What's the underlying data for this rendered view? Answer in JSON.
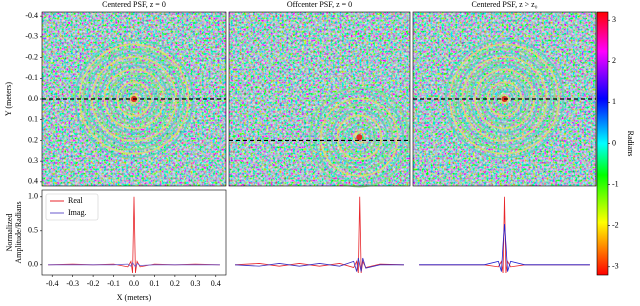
{
  "chart_data": [
    {
      "type": "image",
      "title": "Centered PSF, z = 0",
      "ylabel": "Y (meters)",
      "ylim": [
        -0.42,
        0.42
      ],
      "y_inverted": true,
      "cut_y": 0,
      "yticks": [
        -0.4,
        -0.3,
        -0.2,
        -0.1,
        {
          "value": 0,
          "label": "0.0"
        },
        0.1,
        0.2,
        0.3,
        0.4
      ]
    },
    {
      "type": "image",
      "title": "Offcenter PSF, z = 0",
      "ylim": [
        -0.42,
        0.42
      ],
      "y_inverted": true,
      "cut_y": 0.2
    },
    {
      "type": "image",
      "title": "Centered PSF, z > z₀",
      "ylim": [
        -0.42,
        0.42
      ],
      "y_inverted": true,
      "cut_y": 0
    },
    {
      "type": "colorbar",
      "label": "Radians",
      "ylim": [
        -3.2,
        3.2
      ],
      "yticks": [
        -3,
        -2,
        -1,
        0,
        1,
        2,
        3
      ]
    },
    {
      "type": "line",
      "ylabel": [
        "Normalized",
        "Amplitude/Radians"
      ],
      "xlabel": "X (meters)",
      "legend": "upper left",
      "xlim": [
        -0.45,
        0.45
      ],
      "ylim": [
        -0.15,
        1.1
      ],
      "xticks": [
        -0.4,
        -0.3,
        -0.2,
        -0.1,
        {
          "value": 0,
          "label": "0.0"
        },
        0.1,
        0.2,
        0.3,
        0.4
      ],
      "yticks": [
        {
          "value": 0,
          "label": "0.0"
        },
        0.5,
        {
          "value": 1,
          "label": "1.0"
        }
      ],
      "x": [
        -0.42,
        -0.3,
        -0.2,
        -0.1,
        -0.03,
        -0.015,
        -0.007,
        0,
        0.007,
        0.015,
        0.03,
        0.1,
        0.2,
        0.3,
        0.42
      ],
      "series": [
        {
          "name": "Real",
          "color": "#e8262b",
          "values": [
            0,
            0.01,
            0,
            0.01,
            -0.03,
            0.05,
            -0.12,
            1.0,
            -0.12,
            0.05,
            -0.03,
            0.01,
            0,
            0.01,
            0
          ]
        },
        {
          "name": "Imag.",
          "color": "#6a5acd",
          "values": [
            0,
            0,
            0,
            0,
            0.01,
            -0.02,
            0.03,
            0,
            -0.03,
            0.02,
            -0.01,
            0,
            0,
            0,
            0
          ]
        }
      ]
    },
    {
      "type": "line",
      "xlim": [
        -0.45,
        0.45
      ],
      "ylim": [
        -0.15,
        1.1
      ],
      "x": [
        -0.42,
        -0.3,
        -0.2,
        -0.1,
        0,
        0.1,
        0.17,
        0.185,
        0.193,
        0.2,
        0.207,
        0.215,
        0.23,
        0.3,
        0.42
      ],
      "series": [
        {
          "name": "Real",
          "color": "#e8262b",
          "values": [
            0,
            0.02,
            -0.02,
            0.02,
            -0.02,
            0.02,
            -0.04,
            0.05,
            -0.12,
            1.0,
            -0.12,
            0.05,
            -0.04,
            0.01,
            0
          ]
        },
        {
          "name": "Imag.",
          "color": "#3a2fc0",
          "values": [
            0,
            -0.02,
            0.02,
            -0.02,
            0.02,
            -0.02,
            0.05,
            -0.1,
            0.1,
            0,
            -0.1,
            0.1,
            -0.05,
            0,
            0
          ]
        }
      ]
    },
    {
      "type": "line",
      "xlim": [
        -0.45,
        0.45
      ],
      "ylim": [
        -0.15,
        1.1
      ],
      "x": [
        -0.42,
        -0.3,
        -0.2,
        -0.1,
        -0.03,
        -0.015,
        -0.007,
        0,
        0.007,
        0.015,
        0.03,
        0.1,
        0.2,
        0.3,
        0.42
      ],
      "series": [
        {
          "name": "Real",
          "color": "#e8262b",
          "values": [
            0,
            0,
            0,
            0,
            -0.03,
            0.05,
            -0.12,
            1.0,
            -0.12,
            0.05,
            -0.03,
            0,
            0,
            0,
            0
          ]
        },
        {
          "name": "Imag.",
          "color": "#2020d0",
          "values": [
            0,
            0,
            0,
            0,
            0.05,
            -0.1,
            0.3,
            0.6,
            0.3,
            -0.1,
            0.05,
            0,
            0,
            0,
            0
          ]
        }
      ]
    }
  ]
}
